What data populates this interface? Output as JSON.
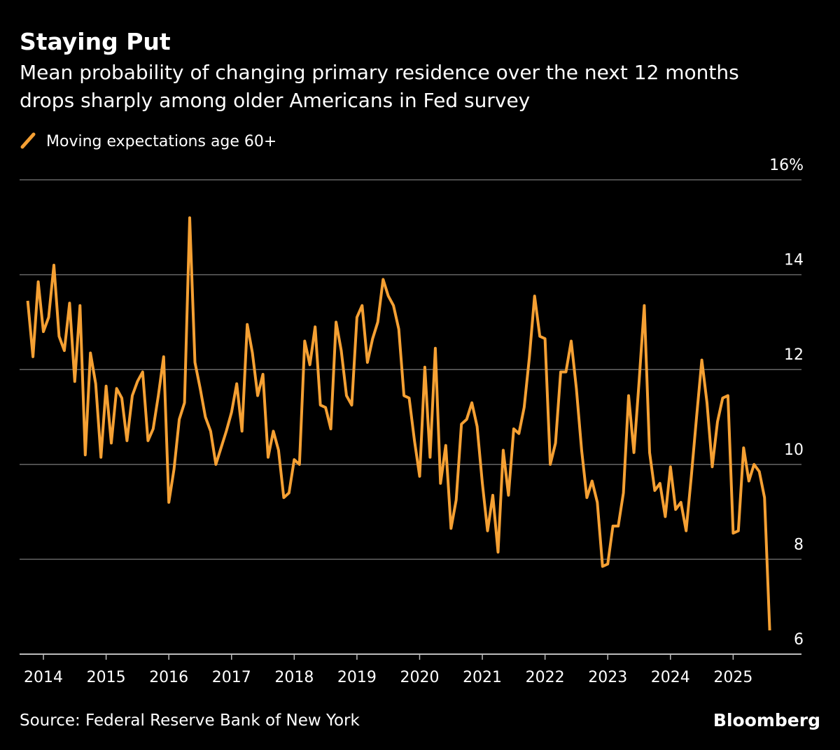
{
  "chart_data": {
    "type": "line",
    "title": "Staying Put",
    "subtitle": "Mean probability of changing primary residence over the next 12 months drops sharply among older Americans in Fed survey",
    "source": "Source: Federal Reserve Bank of New York",
    "brand": "Bloomberg",
    "x": [
      2013.75,
      2013.833,
      2013.917,
      2014,
      2014.083,
      2014.167,
      2014.25,
      2014.333,
      2014.417,
      2014.5,
      2014.583,
      2014.667,
      2014.75,
      2014.833,
      2014.917,
      2015,
      2015.083,
      2015.167,
      2015.25,
      2015.333,
      2015.417,
      2015.5,
      2015.583,
      2015.667,
      2015.75,
      2015.833,
      2015.917,
      2016,
      2016.083,
      2016.167,
      2016.25,
      2016.333,
      2016.417,
      2016.5,
      2016.583,
      2016.667,
      2016.75,
      2016.833,
      2016.917,
      2017,
      2017.083,
      2017.167,
      2017.25,
      2017.333,
      2017.417,
      2017.5,
      2017.583,
      2017.667,
      2017.75,
      2017.833,
      2017.917,
      2018,
      2018.083,
      2018.167,
      2018.25,
      2018.333,
      2018.417,
      2018.5,
      2018.583,
      2018.667,
      2018.75,
      2018.833,
      2018.917,
      2019,
      2019.083,
      2019.167,
      2019.25,
      2019.333,
      2019.417,
      2019.5,
      2019.583,
      2019.667,
      2019.75,
      2019.833,
      2019.917,
      2020,
      2020.083,
      2020.167,
      2020.25,
      2020.333,
      2020.417,
      2020.5,
      2020.583,
      2020.667,
      2020.75,
      2020.833,
      2020.917,
      2021,
      2021.083,
      2021.167,
      2021.25,
      2021.333,
      2021.417,
      2021.5,
      2021.583,
      2021.667,
      2021.75,
      2021.833,
      2021.917,
      2022,
      2022.083,
      2022.167,
      2022.25,
      2022.333,
      2022.417,
      2022.5,
      2022.583,
      2022.667,
      2022.75,
      2022.833,
      2022.917,
      2023,
      2023.083,
      2023.167,
      2023.25,
      2023.333,
      2023.417,
      2023.5,
      2023.583,
      2023.667,
      2023.75,
      2023.833,
      2023.917,
      2024,
      2024.083,
      2024.167,
      2024.25,
      2024.333,
      2024.417,
      2024.5,
      2024.583,
      2024.667,
      2024.75,
      2024.833,
      2024.917,
      2025,
      2025.083,
      2025.167,
      2025.25,
      2025.333,
      2025.417,
      2025.5,
      2025.583
    ],
    "series": [
      {
        "name": "Moving expectations age 60+",
        "color": "#f5a033",
        "values": [
          13.45,
          12.27,
          13.85,
          12.8,
          13.1,
          14.2,
          12.7,
          12.4,
          13.4,
          11.75,
          13.35,
          10.2,
          12.35,
          11.7,
          10.15,
          11.65,
          10.45,
          11.6,
          11.4,
          10.5,
          11.45,
          11.75,
          11.95,
          10.5,
          10.75,
          11.45,
          12.27,
          9.2,
          9.9,
          10.95,
          11.3,
          15.2,
          12.15,
          11.6,
          11.0,
          10.7,
          10.0,
          10.35,
          10.7,
          11.1,
          11.7,
          10.7,
          12.95,
          12.35,
          11.45,
          11.9,
          10.15,
          10.7,
          10.3,
          9.3,
          9.4,
          10.1,
          10.0,
          12.6,
          12.1,
          12.9,
          11.25,
          11.2,
          10.75,
          13.0,
          12.4,
          11.45,
          11.25,
          13.1,
          13.35,
          12.15,
          12.65,
          13.0,
          13.9,
          13.55,
          13.35,
          12.85,
          11.45,
          11.4,
          10.5,
          9.75,
          12.05,
          10.15,
          12.45,
          9.6,
          10.4,
          8.65,
          9.25,
          10.85,
          10.95,
          11.3,
          10.8,
          9.6,
          8.6,
          9.35,
          8.15,
          10.3,
          9.35,
          10.75,
          10.65,
          11.2,
          12.25,
          13.55,
          12.7,
          12.65,
          10.0,
          10.45,
          11.95,
          11.95,
          12.6,
          11.6,
          10.3,
          9.3,
          9.65,
          9.2,
          7.85,
          7.9,
          8.7,
          8.7,
          9.4,
          11.45,
          10.25,
          11.75,
          13.35,
          10.25,
          9.45,
          9.6,
          8.9,
          9.95,
          9.05,
          9.2,
          8.6,
          9.75,
          11.0,
          12.2,
          11.3,
          9.95,
          10.9,
          11.4,
          11.45,
          8.55,
          8.6,
          10.35,
          9.65,
          10.0,
          9.85,
          9.3,
          6.5
        ]
      }
    ],
    "xlim": [
      2013.62,
      2026.09
    ],
    "xticks": [
      2014,
      2015,
      2016,
      2017,
      2018,
      2019,
      2020,
      2021,
      2022,
      2023,
      2024,
      2025
    ],
    "ylim": [
      6,
      16
    ],
    "yticks": [
      6,
      8,
      10,
      12,
      14,
      {
        "value": 16,
        "label": "16%"
      }
    ],
    "grid": true
  }
}
